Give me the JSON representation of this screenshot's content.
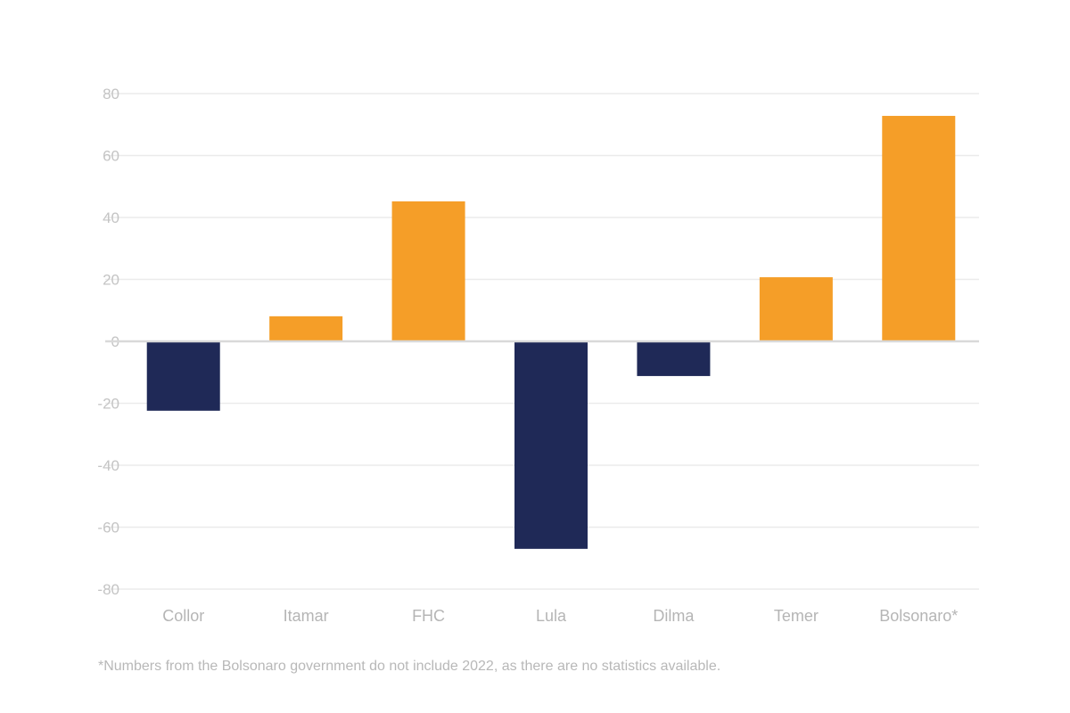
{
  "chart_data": {
    "type": "bar",
    "title": "",
    "xlabel": "",
    "ylabel": "",
    "categories": [
      "Collor",
      "Itamar",
      "FHC",
      "Lula",
      "Dilma",
      "Temer",
      "Bolsonaro*"
    ],
    "values": [
      -22.4,
      8.1,
      45.2,
      -67.0,
      -11.2,
      20.7,
      72.8
    ],
    "ylim": [
      -80,
      80
    ],
    "yticks": [
      80,
      60,
      40,
      20,
      0,
      -20,
      -40,
      -60,
      -80
    ],
    "grid": true,
    "colors": {
      "positive": "#f59e28",
      "negative": "#1f2957",
      "grid": "#ebebeb",
      "zero_line": "#d9d9d9"
    },
    "footnote": "*Numbers from the Bolsonaro government do not include 2022, as there are no statistics available."
  }
}
